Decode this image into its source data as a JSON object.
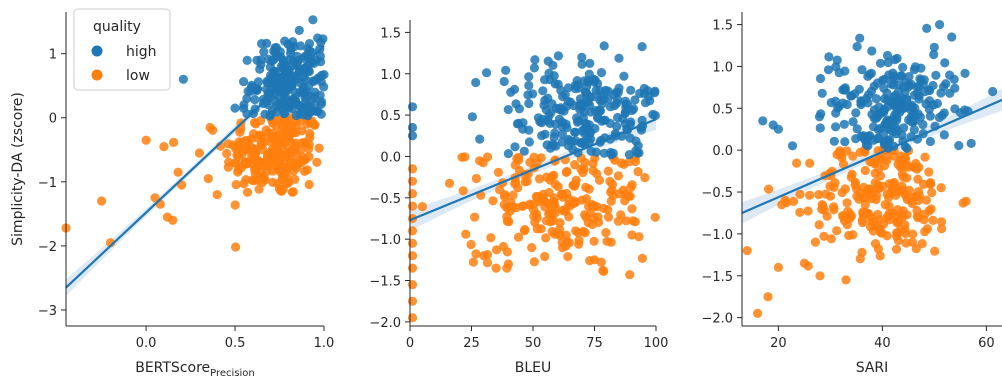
{
  "legend": {
    "title": "quality",
    "entries": [
      {
        "label": "high",
        "color": "#1f77b4"
      },
      {
        "label": "low",
        "color": "#ff7f0e"
      }
    ]
  },
  "colors": {
    "high": "#1f77b4",
    "low": "#ff7f0e",
    "fit_line": "#1f77b4",
    "ci_band": "#c6dbef",
    "axis": "#262626"
  },
  "chart_data": [
    {
      "type": "scatter",
      "xlabel_main": "BERTScore",
      "xlabel_sub": "Precision",
      "ylabel": "Simplicity-DA (zscore)",
      "xlim": [
        -0.45,
        1.0
      ],
      "ylim": [
        -3.25,
        1.65
      ],
      "xticks": [
        0.0,
        0.5,
        1.0
      ],
      "xtick_labels": [
        "0.0",
        "0.5",
        "1.0"
      ],
      "yticks": [
        -3,
        -2,
        -1,
        0,
        1
      ],
      "ytick_labels": [
        "−3",
        "−2",
        "−1",
        "0",
        "1"
      ],
      "regression": {
        "x0": -0.45,
        "y0": -2.65,
        "x1": 1.0,
        "y1": 1.12
      },
      "high_cluster": {
        "cx": 0.8,
        "sx": 0.1,
        "cy": 0.55,
        "sy": 0.35,
        "n": 230,
        "xmax": 1.0
      },
      "low_cluster": {
        "cx": 0.72,
        "sx": 0.14,
        "cy": -0.55,
        "sy": 0.35,
        "n": 230
      },
      "extra_points": {
        "high": [
          [
            0.21,
            0.6
          ],
          [
            0.55,
            0.2
          ],
          [
            0.5,
            0.15
          ]
        ],
        "low": [
          [
            -0.45,
            -1.72
          ],
          [
            -0.25,
            -1.3
          ],
          [
            -0.2,
            -1.95
          ],
          [
            0.0,
            -0.35
          ],
          [
            0.08,
            -1.35
          ],
          [
            0.12,
            -1.55
          ],
          [
            0.05,
            -1.25
          ],
          [
            0.18,
            -0.85
          ],
          [
            0.2,
            -1.05
          ],
          [
            0.15,
            -1.6
          ],
          [
            0.3,
            -0.55
          ],
          [
            0.1,
            -0.45
          ],
          [
            0.35,
            -0.95
          ],
          [
            0.4,
            -1.2
          ]
        ]
      }
    },
    {
      "type": "scatter",
      "xlabel_main": "BLEU",
      "ylabel": "",
      "xlim": [
        0,
        100
      ],
      "ylim": [
        -2.05,
        1.65
      ],
      "xticks": [
        0,
        25,
        50,
        75,
        100
      ],
      "xtick_labels": [
        "0",
        "25",
        "50",
        "75",
        "100"
      ],
      "yticks": [
        -2.0,
        -1.5,
        -1.0,
        -0.5,
        0.0,
        0.5,
        1.0,
        1.5
      ],
      "ytick_labels": [
        "−2.0",
        "−1.5",
        "−1.0",
        "−0.5",
        "0.0",
        "0.5",
        "1.0",
        "1.5"
      ],
      "regression": {
        "x0": 0,
        "y0": -0.77,
        "x1": 100,
        "y1": 0.45
      },
      "high_cluster": {
        "cx": 70,
        "sx": 17,
        "cy": 0.55,
        "sy": 0.35,
        "n": 230,
        "xmax": 100
      },
      "low_cluster": {
        "cx": 60,
        "sx": 20,
        "cy": -0.55,
        "sy": 0.35,
        "n": 230
      },
      "extra_points": {
        "high": [
          [
            1,
            0.6
          ],
          [
            1,
            0.35
          ],
          [
            1,
            0.25
          ]
        ],
        "low": [
          [
            1,
            -1.95
          ],
          [
            1,
            -1.75
          ],
          [
            1,
            -1.55
          ],
          [
            1,
            -1.35
          ],
          [
            1,
            -1.2
          ],
          [
            1,
            -1.05
          ],
          [
            1,
            -0.9
          ],
          [
            1,
            -0.75
          ],
          [
            1,
            -0.6
          ],
          [
            1,
            -0.45
          ],
          [
            1,
            -0.3
          ],
          [
            1,
            -0.15
          ],
          [
            30,
            -1.2
          ],
          [
            35,
            -1.35
          ],
          [
            40,
            -1.3
          ],
          [
            75,
            -1.25
          ]
        ]
      }
    },
    {
      "type": "scatter",
      "xlabel_main": "SARI",
      "ylabel": "",
      "xlim": [
        13,
        63
      ],
      "ylim": [
        -2.1,
        1.65
      ],
      "xticks": [
        20,
        40,
        60
      ],
      "xtick_labels": [
        "20",
        "40",
        "60"
      ],
      "yticks": [
        -2.0,
        -1.5,
        -1.0,
        -0.5,
        0.0,
        0.5,
        1.0,
        1.5
      ],
      "ytick_labels": [
        "−2.0",
        "−1.5",
        "−1.0",
        "−0.5",
        "0.0",
        "0.5",
        "1.0",
        "1.5"
      ],
      "regression": {
        "x0": 13,
        "y0": -0.75,
        "x1": 63,
        "y1": 0.6
      },
      "high_cluster": {
        "cx": 42,
        "sx": 6,
        "cy": 0.55,
        "sy": 0.35,
        "n": 230,
        "xmax": 63
      },
      "low_cluster": {
        "cx": 40,
        "sx": 7,
        "cy": -0.55,
        "sy": 0.35,
        "n": 230
      },
      "extra_points": {
        "high": [
          [
            17,
            0.35
          ],
          [
            19,
            0.3
          ],
          [
            20,
            0.25
          ],
          [
            51,
            1.5
          ]
        ],
        "low": [
          [
            16,
            -1.95
          ],
          [
            18,
            -1.75
          ],
          [
            20,
            -1.4
          ],
          [
            14,
            -1.2
          ],
          [
            25,
            -1.35
          ],
          [
            33,
            -1.55
          ],
          [
            28,
            -1.5
          ]
        ]
      }
    }
  ]
}
